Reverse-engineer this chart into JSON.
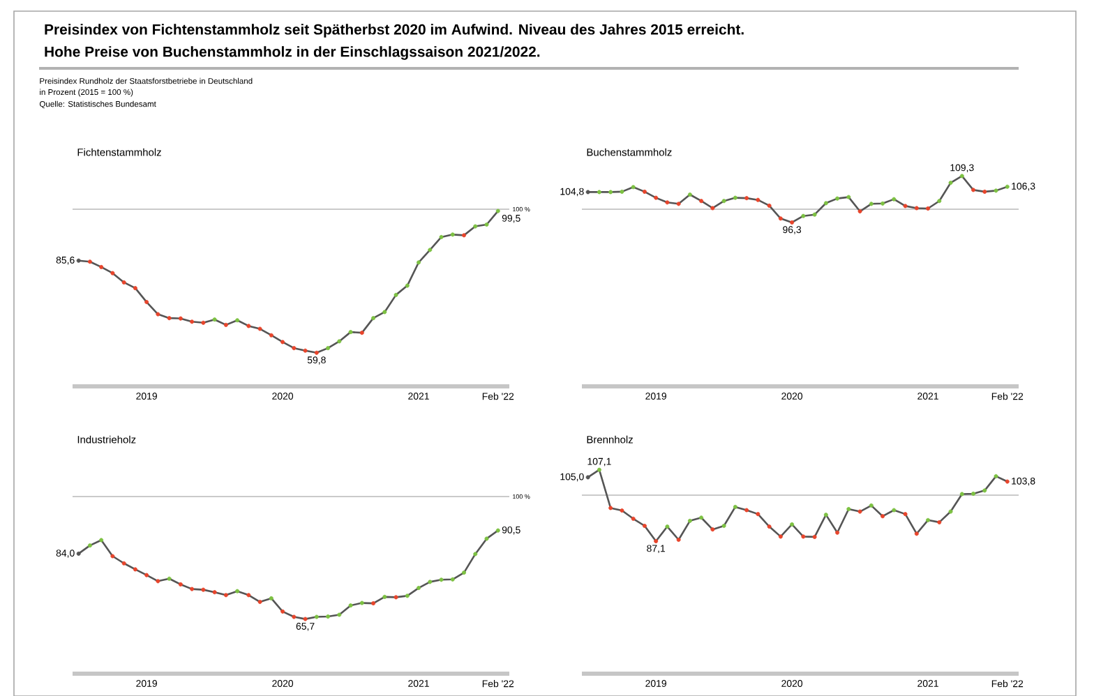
{
  "chart_data": [
    {
      "type": "other",
      "title": "Preisindex von Fichtenstammholz seit Spätherbst 2020 im Aufwind. Niveau des Jahres 2015 erreicht.",
      "subtitle": "Hohe Preise von Buchenstammholz in der Einschlagssaison 2021/2022.",
      "annotations": [
        "Preisindex Rundholz der Staatsforstbetriebe in Deutschland",
        "in Prozent (2015 = 100 %)",
        "Quelle: Statistisches Bundesamt"
      ]
    },
    {
      "type": "line",
      "title": "Fichtenstammholz",
      "marker": "circle",
      "tick_labels": "x",
      "color": "#555555",
      "xlim": [
        "2018-12-15",
        "2022-03-01"
      ],
      "xticks": [
        {
          "value": "2019-07",
          "label": "2019"
        },
        {
          "value": "2020-07",
          "label": "2020"
        },
        {
          "value": "2021-07",
          "label": "2021"
        },
        {
          "value": "2022-02",
          "label": "Feb '22"
        }
      ],
      "ref_lines": [
        {
          "axis": "y",
          "value": 100,
          "label": "100 %"
        }
      ],
      "x": [
        "2019-01",
        "2019-02",
        "2019-03",
        "2019-04",
        "2019-05",
        "2019-06",
        "2019-07",
        "2019-08",
        "2019-09",
        "2019-10",
        "2019-11",
        "2019-12",
        "2020-01",
        "2020-02",
        "2020-03",
        "2020-04",
        "2020-05",
        "2020-06",
        "2020-07",
        "2020-08",
        "2020-09",
        "2020-10",
        "2020-11",
        "2020-12",
        "2021-01",
        "2021-02",
        "2021-03",
        "2021-04",
        "2021-05",
        "2021-06",
        "2021-07",
        "2021-08",
        "2021-09",
        "2021-10",
        "2021-11",
        "2021-12",
        "2022-01",
        "2022-02"
      ],
      "values": [
        85.6,
        85.3,
        83.8,
        82.1,
        79.5,
        77.9,
        74.0,
        70.6,
        69.5,
        69.4,
        68.5,
        68.2,
        69.1,
        67.6,
        68.9,
        67.3,
        66.5,
        64.7,
        62.8,
        61.1,
        60.4,
        59.8,
        61.1,
        63.0,
        65.6,
        65.4,
        69.5,
        71.2,
        76.0,
        78.6,
        85.1,
        88.6,
        92.2,
        92.9,
        92.7,
        95.2,
        95.7,
        99.5
      ],
      "colors": [
        "#555555",
        "#e8452c",
        "#e8452c",
        "#e8452c",
        "#e8452c",
        "#e8452c",
        "#e8452c",
        "#e8452c",
        "#e8452c",
        "#e8452c",
        "#e8452c",
        "#e8452c",
        "#7dc143",
        "#e8452c",
        "#7dc143",
        "#e8452c",
        "#e8452c",
        "#e8452c",
        "#e8452c",
        "#e8452c",
        "#e8452c",
        "#e8452c",
        "#7dc143",
        "#7dc143",
        "#7dc143",
        "#e8452c",
        "#7dc143",
        "#7dc143",
        "#7dc143",
        "#7dc143",
        "#7dc143",
        "#7dc143",
        "#7dc143",
        "#7dc143",
        "#e8452c",
        "#7dc143",
        "#7dc143",
        "#7dc143"
      ],
      "value_labels": [
        "85,6",
        null,
        null,
        null,
        null,
        null,
        null,
        null,
        null,
        null,
        null,
        null,
        null,
        null,
        null,
        null,
        null,
        null,
        null,
        null,
        null,
        "59,8",
        null,
        null,
        null,
        null,
        null,
        null,
        null,
        null,
        null,
        null,
        null,
        null,
        null,
        null,
        null,
        "99,5"
      ]
    },
    {
      "type": "line",
      "title": "Buchenstammholz",
      "marker": "circle",
      "tick_labels": "x",
      "color": "#555555",
      "xlim": [
        "2018-12-15",
        "2022-03-01"
      ],
      "xticks": [
        {
          "value": "2019-07",
          "label": "2019"
        },
        {
          "value": "2020-07",
          "label": "2020"
        },
        {
          "value": "2021-07",
          "label": "2021"
        },
        {
          "value": "2022-02",
          "label": "Feb '22"
        }
      ],
      "ref_lines": [
        {
          "axis": "y",
          "value": 100
        }
      ],
      "x": [
        "2019-01",
        "2019-02",
        "2019-03",
        "2019-04",
        "2019-05",
        "2019-06",
        "2019-07",
        "2019-08",
        "2019-09",
        "2019-10",
        "2019-11",
        "2019-12",
        "2020-01",
        "2020-02",
        "2020-03",
        "2020-04",
        "2020-05",
        "2020-06",
        "2020-07",
        "2020-08",
        "2020-09",
        "2020-10",
        "2020-11",
        "2020-12",
        "2021-01",
        "2021-02",
        "2021-03",
        "2021-04",
        "2021-05",
        "2021-06",
        "2021-07",
        "2021-08",
        "2021-09",
        "2021-10",
        "2021-11",
        "2021-12",
        "2022-01",
        "2022-02"
      ],
      "values": [
        104.8,
        104.8,
        104.8,
        104.9,
        106.2,
        104.9,
        103.2,
        101.9,
        101.5,
        104.1,
        102.3,
        100.3,
        102.3,
        103.2,
        103.1,
        102.6,
        101.0,
        97.4,
        96.3,
        98.1,
        98.5,
        101.7,
        103.0,
        103.4,
        99.4,
        101.5,
        101.6,
        102.8,
        100.9,
        100.3,
        100.2,
        102.3,
        107.4,
        109.3,
        105.4,
        104.9,
        105.2,
        106.3
      ],
      "colors": [
        "#555555",
        "#7dc143",
        "#7dc143",
        "#7dc143",
        "#7dc143",
        "#e8452c",
        "#e8452c",
        "#e8452c",
        "#e8452c",
        "#7dc143",
        "#e8452c",
        "#e8452c",
        "#7dc143",
        "#7dc143",
        "#e8452c",
        "#e8452c",
        "#e8452c",
        "#e8452c",
        "#e8452c",
        "#7dc143",
        "#7dc143",
        "#7dc143",
        "#7dc143",
        "#7dc143",
        "#e8452c",
        "#7dc143",
        "#7dc143",
        "#7dc143",
        "#e8452c",
        "#e8452c",
        "#e8452c",
        "#7dc143",
        "#7dc143",
        "#7dc143",
        "#e8452c",
        "#e8452c",
        "#7dc143",
        "#7dc143"
      ],
      "value_labels": [
        "104,8",
        null,
        null,
        null,
        null,
        null,
        null,
        null,
        null,
        null,
        null,
        null,
        null,
        null,
        null,
        null,
        null,
        null,
        "96,3",
        null,
        null,
        null,
        null,
        null,
        null,
        null,
        null,
        null,
        null,
        null,
        null,
        null,
        null,
        "109,3",
        null,
        null,
        null,
        "106,3"
      ]
    },
    {
      "type": "line",
      "title": "Industrieholz",
      "marker": "circle",
      "tick_labels": "x",
      "color": "#555555",
      "xlim": [
        "2018-12-15",
        "2022-03-01"
      ],
      "xticks": [
        {
          "value": "2019-07",
          "label": "2019"
        },
        {
          "value": "2020-07",
          "label": "2020"
        },
        {
          "value": "2021-07",
          "label": "2021"
        },
        {
          "value": "2022-02",
          "label": "Feb '22"
        }
      ],
      "ref_lines": [
        {
          "axis": "y",
          "value": 100,
          "label": "100 %"
        }
      ],
      "x": [
        "2019-01",
        "2019-02",
        "2019-03",
        "2019-04",
        "2019-05",
        "2019-06",
        "2019-07",
        "2019-08",
        "2019-09",
        "2019-10",
        "2019-11",
        "2019-12",
        "2020-01",
        "2020-02",
        "2020-03",
        "2020-04",
        "2020-05",
        "2020-06",
        "2020-07",
        "2020-08",
        "2020-09",
        "2020-10",
        "2020-11",
        "2020-12",
        "2021-01",
        "2021-02",
        "2021-03",
        "2021-04",
        "2021-05",
        "2021-06",
        "2021-07",
        "2021-08",
        "2021-09",
        "2021-10",
        "2021-11",
        "2021-12",
        "2022-01",
        "2022-02"
      ],
      "values": [
        84.0,
        86.3,
        87.8,
        83.3,
        81.3,
        79.6,
        78.0,
        76.3,
        77.0,
        75.4,
        74.1,
        73.9,
        73.2,
        72.4,
        73.5,
        72.4,
        70.5,
        71.5,
        67.8,
        66.3,
        65.7,
        66.3,
        66.4,
        66.9,
        69.5,
        70.2,
        70.1,
        71.9,
        71.8,
        72.2,
        74.4,
        76.1,
        76.7,
        76.8,
        78.7,
        83.9,
        88.2,
        90.5
      ],
      "colors": [
        "#555555",
        "#7dc143",
        "#7dc143",
        "#e8452c",
        "#e8452c",
        "#e8452c",
        "#e8452c",
        "#e8452c",
        "#7dc143",
        "#e8452c",
        "#e8452c",
        "#e8452c",
        "#e8452c",
        "#e8452c",
        "#7dc143",
        "#e8452c",
        "#e8452c",
        "#7dc143",
        "#e8452c",
        "#e8452c",
        "#e8452c",
        "#7dc143",
        "#7dc143",
        "#7dc143",
        "#7dc143",
        "#7dc143",
        "#e8452c",
        "#7dc143",
        "#e8452c",
        "#7dc143",
        "#7dc143",
        "#7dc143",
        "#7dc143",
        "#7dc143",
        "#7dc143",
        "#7dc143",
        "#7dc143",
        "#7dc143"
      ],
      "value_labels": [
        "84,0",
        null,
        null,
        null,
        null,
        null,
        null,
        null,
        null,
        null,
        null,
        null,
        null,
        null,
        null,
        null,
        null,
        null,
        null,
        null,
        "65,7",
        null,
        null,
        null,
        null,
        null,
        null,
        null,
        null,
        null,
        null,
        null,
        null,
        null,
        null,
        null,
        null,
        "90,5"
      ]
    },
    {
      "type": "line",
      "title": "Brennholz",
      "marker": "circle",
      "tick_labels": "x",
      "color": "#555555",
      "xlim": [
        "2018-12-15",
        "2022-03-01"
      ],
      "xticks": [
        {
          "value": "2019-07",
          "label": "2019"
        },
        {
          "value": "2020-07",
          "label": "2020"
        },
        {
          "value": "2021-07",
          "label": "2021"
        },
        {
          "value": "2022-02",
          "label": "Feb '22"
        }
      ],
      "ref_lines": [
        {
          "axis": "y",
          "value": 100
        }
      ],
      "x": [
        "2019-01",
        "2019-02",
        "2019-03",
        "2019-04",
        "2019-05",
        "2019-06",
        "2019-07",
        "2019-08",
        "2019-09",
        "2019-10",
        "2019-11",
        "2019-12",
        "2020-01",
        "2020-02",
        "2020-03",
        "2020-04",
        "2020-05",
        "2020-06",
        "2020-07",
        "2020-08",
        "2020-09",
        "2020-10",
        "2020-11",
        "2020-12",
        "2021-01",
        "2021-02",
        "2021-03",
        "2021-04",
        "2021-05",
        "2021-06",
        "2021-07",
        "2021-08",
        "2021-09",
        "2021-10",
        "2021-11",
        "2021-12",
        "2022-01",
        "2022-02"
      ],
      "values": [
        105.0,
        107.1,
        96.4,
        95.7,
        93.4,
        91.4,
        87.1,
        91.2,
        87.5,
        92.8,
        93.7,
        90.4,
        91.4,
        96.7,
        95.8,
        94.7,
        91.2,
        88.4,
        91.8,
        88.4,
        88.3,
        94.5,
        89.5,
        96.1,
        95.4,
        97.1,
        94.1,
        95.8,
        94.7,
        89.2,
        93.0,
        92.4,
        95.4,
        100.3,
        100.4,
        101.3,
        105.3,
        103.8
      ],
      "colors": [
        "#555555",
        "#7dc143",
        "#e8452c",
        "#e8452c",
        "#e8452c",
        "#e8452c",
        "#e8452c",
        "#7dc143",
        "#e8452c",
        "#7dc143",
        "#7dc143",
        "#e8452c",
        "#7dc143",
        "#7dc143",
        "#e8452c",
        "#e8452c",
        "#e8452c",
        "#e8452c",
        "#7dc143",
        "#e8452c",
        "#e8452c",
        "#7dc143",
        "#e8452c",
        "#7dc143",
        "#e8452c",
        "#7dc143",
        "#e8452c",
        "#7dc143",
        "#e8452c",
        "#e8452c",
        "#7dc143",
        "#e8452c",
        "#7dc143",
        "#7dc143",
        "#7dc143",
        "#7dc143",
        "#7dc143",
        "#e8452c"
      ],
      "value_labels": [
        "105,0",
        "107,1",
        null,
        null,
        null,
        null,
        "87,1",
        null,
        null,
        null,
        null,
        null,
        null,
        null,
        null,
        null,
        null,
        null,
        null,
        null,
        null,
        null,
        null,
        null,
        null,
        null,
        null,
        null,
        null,
        null,
        null,
        null,
        null,
        null,
        null,
        null,
        null,
        "103,8"
      ]
    }
  ]
}
